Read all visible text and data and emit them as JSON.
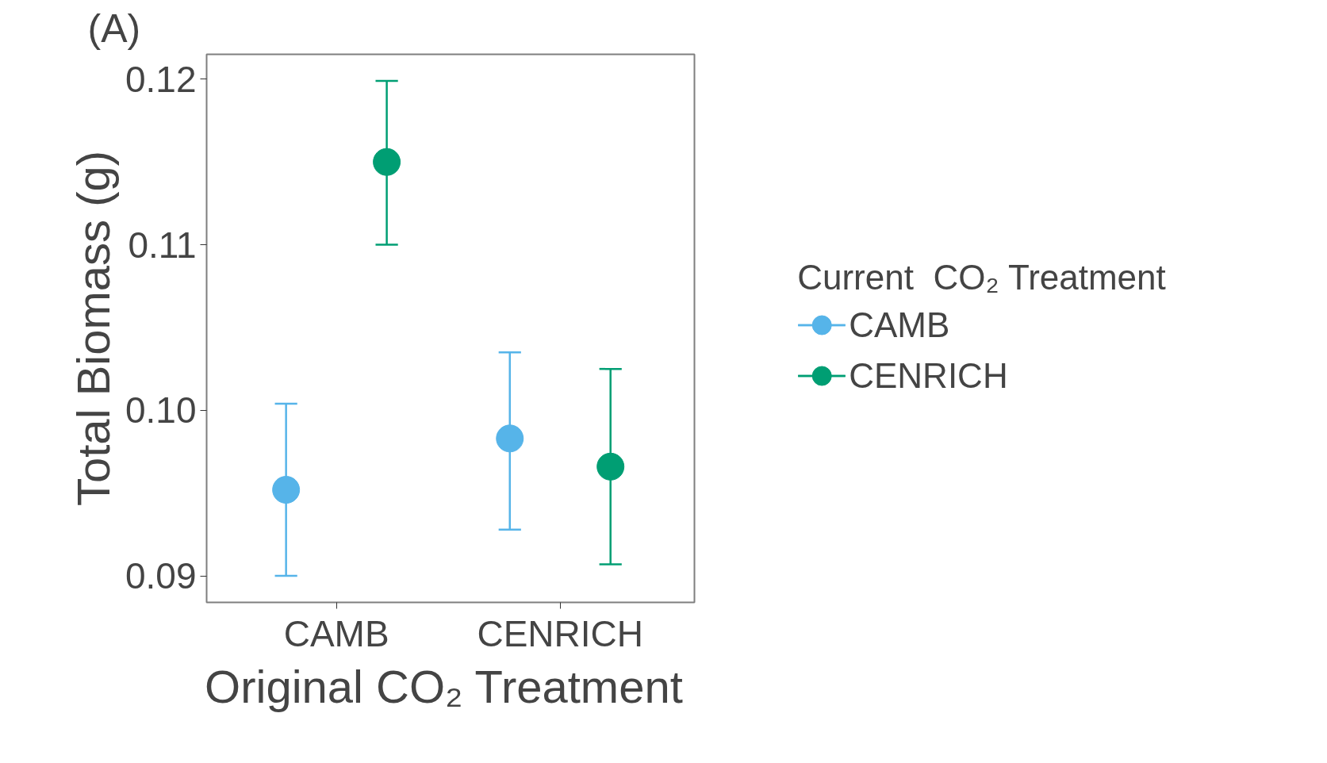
{
  "chart_data": {
    "type": "scatter",
    "categories": [
      "CAMB",
      "CENRICH"
    ],
    "xlabel": "Original  CO₂ Treatment",
    "ylabel": "Total Biomass (g)",
    "legend_title": "Current  CO₂ Treatment",
    "annotations": [
      "(A)"
    ],
    "ylim": [
      0.0884,
      0.1215
    ],
    "yticks": [
      0.09,
      {
        "value": 0.1,
        "label": "0.10"
      },
      0.11,
      0.12
    ],
    "grid": false,
    "legend": "right",
    "marker": "circle",
    "series": [
      {
        "name": "CAMB",
        "color": "#56b4e9",
        "values": [
          0.0952,
          0.0983
        ],
        "errors": [
          [
            0.09,
            0.1004
          ],
          [
            0.0928,
            0.1035
          ]
        ]
      },
      {
        "name": "CENRICH",
        "color": "#009e73",
        "values": [
          0.115,
          0.0966
        ],
        "errors": [
          [
            0.11,
            0.1199
          ],
          [
            0.0907,
            0.1025
          ]
        ]
      }
    ]
  }
}
